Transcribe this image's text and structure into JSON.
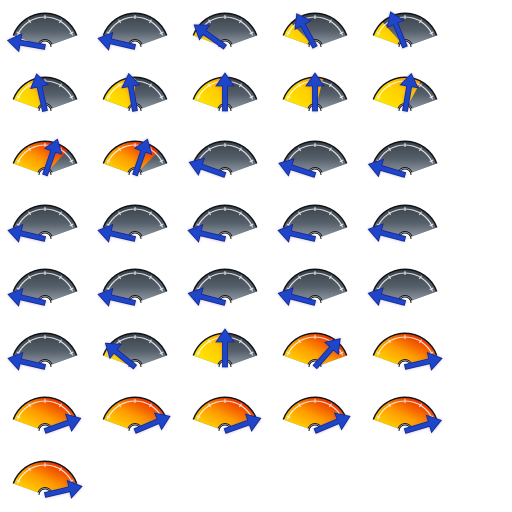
{
  "sprite_sheet": {
    "description_hidden": "",
    "frames": [
      {
        "fill": 0.0,
        "needle": 0.0,
        "hot": 0.0
      },
      {
        "fill": 0.0,
        "needle": 0.02,
        "hot": 0.0
      },
      {
        "fill": 0.05,
        "needle": 0.16,
        "hot": 0.0
      },
      {
        "fill": 0.18,
        "needle": 0.32,
        "hot": 0.0
      },
      {
        "fill": 0.2,
        "needle": 0.36,
        "hot": 0.0
      },
      {
        "fill": 0.42,
        "needle": 0.42,
        "hot": 0.0
      },
      {
        "fill": 0.5,
        "needle": 0.44,
        "hot": 0.05
      },
      {
        "fill": 0.55,
        "needle": 0.5,
        "hot": 0.05
      },
      {
        "fill": 0.6,
        "needle": 0.5,
        "hot": 0.05
      },
      {
        "fill": 0.7,
        "needle": 0.56,
        "hot": 0.15
      },
      {
        "fill": 0.8,
        "needle": 0.62,
        "hot": 0.45
      },
      {
        "fill": 0.82,
        "needle": 0.62,
        "hot": 0.55
      },
      {
        "fill": 0.0,
        "needle": 0.06,
        "hot": 0.0
      },
      {
        "fill": 0.0,
        "needle": 0.05,
        "hot": 0.0
      },
      {
        "fill": 0.0,
        "needle": 0.04,
        "hot": 0.0
      },
      {
        "fill": 0.0,
        "needle": 0.02,
        "hot": 0.0
      },
      {
        "fill": 0.0,
        "needle": 0.02,
        "hot": 0.0
      },
      {
        "fill": 0.0,
        "needle": 0.02,
        "hot": 0.0
      },
      {
        "fill": 0.0,
        "needle": 0.02,
        "hot": 0.0
      },
      {
        "fill": 0.0,
        "needle": 0.03,
        "hot": 0.0
      },
      {
        "fill": 0.0,
        "needle": 0.02,
        "hot": 0.0
      },
      {
        "fill": 0.0,
        "needle": 0.02,
        "hot": 0.0
      },
      {
        "fill": 0.0,
        "needle": 0.03,
        "hot": 0.0
      },
      {
        "fill": 0.0,
        "needle": 0.03,
        "hot": 0.0
      },
      {
        "fill": 0.0,
        "needle": 0.03,
        "hot": 0.0
      },
      {
        "fill": 0.0,
        "needle": 0.02,
        "hot": 0.0
      },
      {
        "fill": 0.15,
        "needle": 0.18,
        "hot": 0.0
      },
      {
        "fill": 0.55,
        "needle": 0.5,
        "hot": 0.05
      },
      {
        "fill": 1.0,
        "needle": 0.76,
        "hot": 0.55
      },
      {
        "fill": 1.0,
        "needle": 0.98,
        "hot": 0.9
      },
      {
        "fill": 1.0,
        "needle": 0.94,
        "hot": 0.95
      },
      {
        "fill": 1.0,
        "needle": 0.92,
        "hot": 0.9
      },
      {
        "fill": 1.0,
        "needle": 0.94,
        "hot": 0.92
      },
      {
        "fill": 1.0,
        "needle": 0.92,
        "hot": 0.8
      },
      {
        "fill": 1.0,
        "needle": 0.96,
        "hot": 0.9
      },
      {
        "fill": 1.0,
        "needle": 0.98,
        "hot": 0.92
      }
    ]
  },
  "colors": {
    "background": "#ffffff",
    "dial_dark_top": "#3a424b",
    "dial_dark_bottom": "#8a96a0",
    "dial_rim": "#111417",
    "fill_cool": "#ffe600",
    "fill_mid": "#ff9a00",
    "fill_hot": "#e20000",
    "needle": "#1f45c9",
    "needle_glow": "#8a4aa8"
  },
  "icons": {
    "dial": "speedometer-gauge-icon",
    "needle": "arrow-needle-icon"
  }
}
